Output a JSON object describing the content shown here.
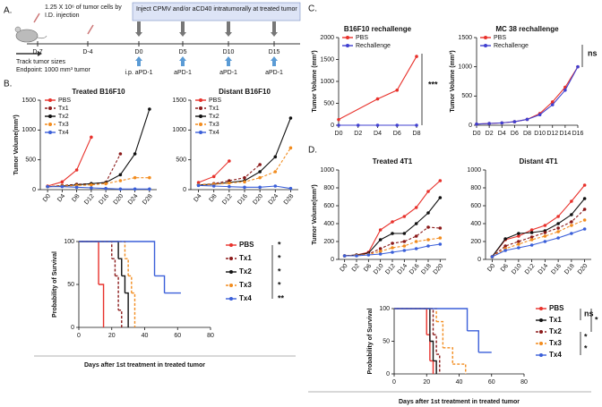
{
  "panel_labels": [
    "A.",
    "B.",
    "C.",
    "D."
  ],
  "timeline": {
    "injection_note": [
      "1.25 X 10⁶ of tumor cells by",
      "I.D. injection"
    ],
    "days": [
      "D-7",
      "D-4",
      "D0",
      "D5",
      "D10",
      "D15"
    ],
    "box": "Inject CPMV and/or aCD40 intratumorally at treated tumor",
    "track": "Track tumor sizes",
    "endpoint": "Endpoint: 1000 mm³ tumor",
    "treatments": [
      "i.p. aPD-1",
      "aPD-1",
      "aPD-1",
      "aPD-1"
    ]
  },
  "chart_data": [
    {
      "type": "line",
      "title": "Treated B16F10",
      "ylabel": "Tumor Volume(mm³)",
      "categories": [
        "D0",
        "D4",
        "D8",
        "D12",
        "D16",
        "D20",
        "D24",
        "D28"
      ],
      "ylim": [
        0,
        1500
      ],
      "yticks": [
        0,
        500,
        1000,
        1500
      ],
      "series": [
        {
          "name": "PBS",
          "color": "#e8312b",
          "line_style": "solid",
          "values": [
            60,
            130,
            330,
            880,
            null,
            null,
            null,
            null
          ]
        },
        {
          "name": "Tx1",
          "color": "#8b1a1a",
          "line_style": "dashed",
          "values": [
            50,
            70,
            90,
            100,
            120,
            600,
            null,
            null
          ]
        },
        {
          "name": "Tx2",
          "color": "#111111",
          "line_style": "solid",
          "values": [
            50,
            60,
            80,
            100,
            120,
            250,
            600,
            1350
          ]
        },
        {
          "name": "Tx3",
          "color": "#f28c1e",
          "line_style": "dashed",
          "values": [
            50,
            60,
            70,
            80,
            100,
            150,
            200,
            200
          ]
        },
        {
          "name": "Tx4",
          "color": "#3a5fd9",
          "line_style": "solid",
          "values": [
            50,
            50,
            40,
            30,
            20,
            10,
            10,
            10
          ]
        }
      ]
    },
    {
      "type": "line",
      "title": "Distant B16F10",
      "categories": [
        "D4",
        "D8",
        "D12",
        "D16",
        "D20",
        "D24",
        "D28"
      ],
      "ylim": [
        0,
        1500
      ],
      "yticks": [
        0,
        500,
        1000,
        1500
      ],
      "series": [
        {
          "name": "PBS",
          "color": "#e8312b",
          "line_style": "solid",
          "values": [
            120,
            220,
            480,
            null,
            null,
            null,
            null
          ]
        },
        {
          "name": "Tx1",
          "color": "#8b1a1a",
          "line_style": "dashed",
          "values": [
            80,
            100,
            150,
            200,
            420,
            null,
            null
          ]
        },
        {
          "name": "Tx2",
          "color": "#111111",
          "line_style": "solid",
          "values": [
            80,
            90,
            120,
            150,
            300,
            550,
            1200
          ]
        },
        {
          "name": "Tx3",
          "color": "#f28c1e",
          "line_style": "dashed",
          "values": [
            80,
            90,
            110,
            130,
            200,
            300,
            700
          ]
        },
        {
          "name": "Tx4",
          "color": "#3a5fd9",
          "line_style": "solid",
          "values": [
            70,
            60,
            50,
            40,
            40,
            60,
            20
          ]
        }
      ]
    },
    {
      "type": "step",
      "ylabel": "Probability of Survival",
      "xlabel": "Days after 1st treatment in treated tumor",
      "xlim": [
        0,
        80
      ],
      "xticks": [
        0,
        20,
        40,
        60,
        80
      ],
      "ylim": [
        0,
        100
      ],
      "yticks": [
        0,
        50,
        100
      ],
      "annotations": [
        "*",
        "*",
        "*",
        "*",
        "**"
      ],
      "series": [
        {
          "name": "PBS",
          "color": "#e8312b",
          "line_style": "solid",
          "x": [
            0,
            12,
            15
          ],
          "values": [
            100,
            50,
            0
          ]
        },
        {
          "name": "Tx1",
          "color": "#8b1a1a",
          "line_style": "dashed",
          "x": [
            0,
            20,
            22,
            24,
            26
          ],
          "values": [
            100,
            80,
            60,
            20,
            0
          ]
        },
        {
          "name": "Tx2",
          "color": "#111111",
          "line_style": "solid",
          "x": [
            0,
            24,
            26,
            28,
            30
          ],
          "values": [
            100,
            80,
            60,
            40,
            0
          ]
        },
        {
          "name": "Tx3",
          "color": "#f28c1e",
          "line_style": "dashed",
          "x": [
            0,
            28,
            30,
            32,
            34
          ],
          "values": [
            100,
            80,
            60,
            40,
            0
          ]
        },
        {
          "name": "Tx4",
          "color": "#3a5fd9",
          "line_style": "solid",
          "x": [
            0,
            46,
            52,
            62
          ],
          "values": [
            100,
            60,
            40,
            40
          ]
        }
      ]
    },
    {
      "type": "line",
      "title": "B16F10 rechallenge",
      "ylabel": "Tumor Volume (mm³)",
      "xlim": [
        0,
        8
      ],
      "xticks": [
        {
          "value": 0,
          "label": "D0"
        },
        {
          "value": 2,
          "label": "D2"
        },
        {
          "value": 4,
          "label": "D4"
        },
        {
          "value": 6,
          "label": "D6"
        },
        {
          "value": 8,
          "label": "D8"
        }
      ],
      "ylim": [
        0,
        2000
      ],
      "yticks": [
        0,
        500,
        1000,
        1500,
        2000
      ],
      "annotations": [
        "***"
      ],
      "series": [
        {
          "name": "PBS",
          "color": "#e8312b",
          "line_style": "solid",
          "x": [
            0,
            4,
            6,
            8
          ],
          "values": [
            130,
            600,
            800,
            1570
          ]
        },
        {
          "name": "Rechallenge",
          "color": "#4040d0",
          "line_style": "solid",
          "x": [
            0,
            2,
            4,
            6,
            8
          ],
          "values": [
            0,
            0,
            0,
            0,
            0
          ]
        }
      ]
    },
    {
      "type": "line",
      "title": "MC 38 rechallenge",
      "ylabel": "Tumor Volume (mm³)",
      "xlim": [
        0,
        16
      ],
      "xticks": [
        {
          "value": 0,
          "label": "D0"
        },
        {
          "value": 2,
          "label": "D2"
        },
        {
          "value": 4,
          "label": "D4"
        },
        {
          "value": 6,
          "label": "D6"
        },
        {
          "value": 8,
          "label": "D8"
        },
        {
          "value": 10,
          "label": "D10"
        },
        {
          "value": 12,
          "label": "D12"
        },
        {
          "value": 14,
          "label": "D14"
        },
        {
          "value": 16,
          "label": "D16"
        }
      ],
      "ylim": [
        0,
        1500
      ],
      "yticks": [
        0,
        500,
        1000,
        1500
      ],
      "annotations": [
        "ns"
      ],
      "series": [
        {
          "name": "PBS",
          "color": "#e8312b",
          "line_style": "solid",
          "x": [
            0,
            2,
            4,
            6,
            8,
            10,
            12,
            14,
            16
          ],
          "values": [
            20,
            30,
            40,
            60,
            100,
            200,
            400,
            650,
            1000
          ]
        },
        {
          "name": "Rechallenge",
          "color": "#4040d0",
          "line_style": "solid",
          "x": [
            0,
            2,
            4,
            6,
            8,
            10,
            12,
            14,
            16
          ],
          "values": [
            20,
            30,
            40,
            60,
            100,
            180,
            350,
            600,
            1000
          ]
        }
      ]
    },
    {
      "type": "line",
      "title": "Treated 4T1",
      "ylabel": "Tumor Volume(mm³)",
      "categories": [
        "D0",
        "D2",
        "D6",
        "D10",
        "D12",
        "D14",
        "D16",
        "D18",
        "D20"
      ],
      "ylim": [
        0,
        1000
      ],
      "yticks": [
        0,
        200,
        400,
        600,
        800,
        1000
      ],
      "series": [
        {
          "name": "PBS",
          "color": "#e8312b",
          "line_style": "solid",
          "values": [
            40,
            50,
            80,
            330,
            420,
            480,
            580,
            760,
            880
          ]
        },
        {
          "name": "Tx1",
          "color": "#111111",
          "line_style": "solid",
          "values": [
            40,
            50,
            70,
            220,
            290,
            290,
            400,
            520,
            690
          ]
        },
        {
          "name": "Tx2",
          "color": "#8b1a1a",
          "line_style": "dashed",
          "values": [
            40,
            45,
            60,
            120,
            180,
            200,
            260,
            360,
            350
          ]
        },
        {
          "name": "Tx3",
          "color": "#f28c1e",
          "line_style": "dashed",
          "values": [
            40,
            45,
            55,
            90,
            130,
            150,
            200,
            220,
            240
          ]
        },
        {
          "name": "Tx4",
          "color": "#3a5fd9",
          "line_style": "solid",
          "values": [
            40,
            40,
            50,
            60,
            80,
            100,
            120,
            150,
            170
          ]
        }
      ]
    },
    {
      "type": "line",
      "title": "Distant 4T1",
      "categories": [
        "D0",
        "D6",
        "D10",
        "D12",
        "D14",
        "D16",
        "D18",
        "D20"
      ],
      "ylim": [
        0,
        1000
      ],
      "yticks": [
        0,
        200,
        400,
        600,
        800,
        1000
      ],
      "series": [
        {
          "name": "PBS",
          "color": "#e8312b",
          "line_style": "solid",
          "values": [
            30,
            220,
            260,
            330,
            380,
            480,
            650,
            830
          ]
        },
        {
          "name": "Tx1",
          "color": "#111111",
          "line_style": "solid",
          "values": [
            30,
            230,
            290,
            300,
            320,
            400,
            500,
            680
          ]
        },
        {
          "name": "Tx2",
          "color": "#8b1a1a",
          "line_style": "dashed",
          "values": [
            30,
            150,
            200,
            250,
            300,
            350,
            420,
            560
          ]
        },
        {
          "name": "Tx3",
          "color": "#f28c1e",
          "line_style": "dashed",
          "values": [
            30,
            120,
            170,
            220,
            260,
            310,
            380,
            440
          ]
        },
        {
          "name": "Tx4",
          "color": "#3a5fd9",
          "line_style": "solid",
          "values": [
            30,
            100,
            130,
            160,
            200,
            240,
            290,
            340
          ]
        }
      ]
    },
    {
      "type": "step",
      "ylabel": "Probability of Survival",
      "xlabel": "Days after 1st treatment in treated tumor",
      "xlim": [
        0,
        80
      ],
      "xticks": [
        0,
        20,
        40,
        60,
        80
      ],
      "ylim": [
        0,
        100
      ],
      "yticks": [
        0,
        50,
        100
      ],
      "annotations": [
        "ns",
        "*",
        "*",
        "*"
      ],
      "series": [
        {
          "name": "PBS",
          "color": "#e8312b",
          "line_style": "solid",
          "x": [
            0,
            20,
            22,
            24
          ],
          "values": [
            100,
            60,
            20,
            0
          ]
        },
        {
          "name": "Tx1",
          "color": "#111111",
          "line_style": "solid",
          "x": [
            0,
            22,
            24,
            26
          ],
          "values": [
            100,
            50,
            20,
            0
          ]
        },
        {
          "name": "Tx2",
          "color": "#8b1a1a",
          "line_style": "dashed",
          "x": [
            0,
            24,
            26,
            28
          ],
          "values": [
            100,
            60,
            30,
            0
          ]
        },
        {
          "name": "Tx3",
          "color": "#f28c1e",
          "line_style": "dashed",
          "x": [
            0,
            26,
            30,
            36,
            44
          ],
          "values": [
            100,
            80,
            40,
            15,
            0
          ]
        },
        {
          "name": "Tx4",
          "color": "#3a5fd9",
          "line_style": "solid",
          "x": [
            0,
            45,
            52,
            60
          ],
          "values": [
            100,
            66,
            33,
            33
          ]
        }
      ]
    }
  ]
}
